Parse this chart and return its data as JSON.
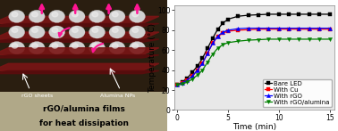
{
  "xlabel": "Time (min)",
  "ylabel": "Temperature (°C)",
  "ylim": [
    0,
    105
  ],
  "xlim": [
    -0.3,
    15.5
  ],
  "yticks": [
    0,
    20,
    40,
    60,
    80,
    100
  ],
  "xticks": [
    0,
    5,
    10,
    15
  ],
  "series": {
    "Bare LED": {
      "color": "#000000",
      "marker": "s",
      "x": [
        0,
        0.5,
        1,
        1.5,
        2,
        2.5,
        3,
        3.5,
        4,
        4.5,
        5,
        6,
        7,
        8,
        9,
        10,
        11,
        12,
        13,
        14,
        15
      ],
      "y": [
        25,
        28,
        32,
        38,
        44,
        52,
        62,
        72,
        81,
        87,
        91,
        94,
        95,
        95.5,
        96,
        96,
        96,
        96,
        96,
        96,
        96
      ]
    },
    "With Cu": {
      "color": "#ff0000",
      "marker": "s",
      "x": [
        0,
        0.5,
        1,
        1.5,
        2,
        2.5,
        3,
        3.5,
        4,
        4.5,
        5,
        6,
        7,
        8,
        9,
        10,
        11,
        12,
        13,
        14,
        15
      ],
      "y": [
        25,
        27,
        30,
        34,
        40,
        47,
        57,
        67,
        74,
        77,
        79,
        80,
        80.5,
        81,
        81,
        81,
        81,
        81,
        81,
        81,
        81
      ]
    },
    "With rGO": {
      "color": "#0000ff",
      "marker": "^",
      "x": [
        0,
        0.5,
        1,
        1.5,
        2,
        2.5,
        3,
        3.5,
        4,
        4.5,
        5,
        6,
        7,
        8,
        9,
        10,
        11,
        12,
        13,
        14,
        15
      ],
      "y": [
        25,
        27,
        30,
        34,
        40,
        47,
        57,
        67,
        74,
        78,
        80,
        81.5,
        82,
        82,
        82,
        82,
        82,
        82,
        82,
        82,
        82
      ]
    },
    "With rGO/alumina": {
      "color": "#008000",
      "marker": "v",
      "x": [
        0,
        0.5,
        1,
        1.5,
        2,
        2.5,
        3,
        3.5,
        4,
        4.5,
        5,
        6,
        7,
        8,
        9,
        10,
        11,
        12,
        13,
        14,
        15
      ],
      "y": [
        25,
        26,
        28,
        31,
        35,
        40,
        48,
        56,
        62,
        65.5,
        67.5,
        69,
        70,
        70.5,
        71,
        71,
        71,
        71,
        71,
        71,
        71
      ]
    }
  },
  "bg_color": "#ffffff",
  "plot_bg_color": "#e8e8e8",
  "markersize": 3.0,
  "linewidth": 0.9,
  "legend_fontsize": 5.0,
  "axis_fontsize": 6.5,
  "tick_fontsize": 5.5,
  "left_bg_dark": "#3a2a1a",
  "left_bg_bottom": "#b0a890",
  "layer_color": "#8B1010",
  "sphere_color_light": "#d0d0d0",
  "sphere_color_dark": "#909090",
  "arrow_color": "#ff1493",
  "label_color_white": "#ffffff",
  "label_color_black": "#111111",
  "label_fontsize": 4.5,
  "caption_fontsize": 6.5
}
